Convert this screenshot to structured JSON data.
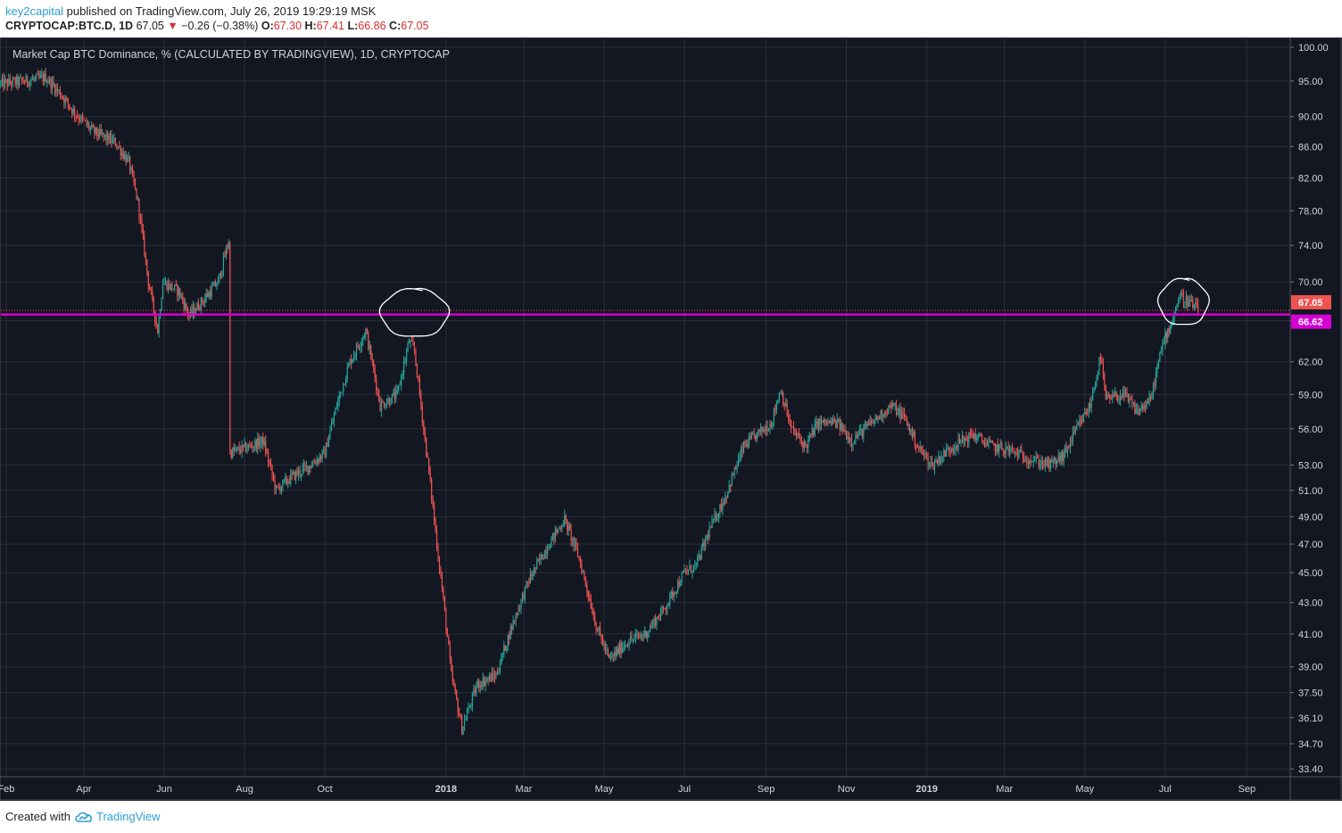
{
  "header": {
    "username": "key2capital",
    "published_text": "published on TradingView.com, July 26, 2019 19:29:19 MSK"
  },
  "symbol_bar": {
    "symbol": "CRYPTOCAP:BTC.D, 1D",
    "last": "67.05",
    "change": "−0.26 (−0.38%)",
    "open_label": "O:",
    "open": "67.30",
    "high_label": "H:",
    "high": "67.41",
    "low_label": "L:",
    "low": "66.86",
    "close_label": "C:",
    "close": "67.05",
    "down_color": "#d32f2f"
  },
  "footer": {
    "created_with": "Created with",
    "brand": "TradingView",
    "brand_icon": "tradingview-cloud-icon"
  },
  "chart_data": {
    "type": "candlestick",
    "title": "Market Cap BTC Dominance, % (CALCULATED BY TRADINGVIEW), 1D, CRYPTOCAP",
    "y_scale": "log",
    "ylim": [
      33.0,
      101.5
    ],
    "y_ticks": [
      "100.00",
      "95.00",
      "90.00",
      "86.00",
      "82.00",
      "78.00",
      "74.00",
      "70.00",
      "66.00",
      "62.00",
      "59.00",
      "56.00",
      "53.00",
      "51.00",
      "49.00",
      "47.00",
      "45.00",
      "43.00",
      "41.00",
      "39.00",
      "37.50",
      "36.10",
      "34.70",
      "33.40"
    ],
    "x_range": [
      "2017-01-28",
      "2019-10-04"
    ],
    "x_ticks": [
      {
        "date": "2017-02-01",
        "label": "Feb",
        "bold": false
      },
      {
        "date": "2017-04-01",
        "label": "Apr",
        "bold": false
      },
      {
        "date": "2017-06-01",
        "label": "Jun",
        "bold": false
      },
      {
        "date": "2017-08-01",
        "label": "Aug",
        "bold": false
      },
      {
        "date": "2017-10-01",
        "label": "Oct",
        "bold": false
      },
      {
        "date": "2018-01-01",
        "label": "2018",
        "bold": true
      },
      {
        "date": "2018-03-01",
        "label": "Mar",
        "bold": false
      },
      {
        "date": "2018-05-01",
        "label": "May",
        "bold": false
      },
      {
        "date": "2018-07-01",
        "label": "Jul",
        "bold": false
      },
      {
        "date": "2018-09-01",
        "label": "Sep",
        "bold": false
      },
      {
        "date": "2018-11-01",
        "label": "Nov",
        "bold": false
      },
      {
        "date": "2019-01-01",
        "label": "2019",
        "bold": true
      },
      {
        "date": "2019-03-01",
        "label": "Mar",
        "bold": false
      },
      {
        "date": "2019-05-01",
        "label": "May",
        "bold": false
      },
      {
        "date": "2019-07-01",
        "label": "Jul",
        "bold": false
      },
      {
        "date": "2019-09-01",
        "label": "Sep",
        "bold": false
      }
    ],
    "price_path": [
      {
        "date": "2017-01-28",
        "value": 94.6
      },
      {
        "date": "2017-02-15",
        "value": 95.0
      },
      {
        "date": "2017-03-03",
        "value": 95.5
      },
      {
        "date": "2017-03-15",
        "value": 93.0
      },
      {
        "date": "2017-03-25",
        "value": 90.5
      },
      {
        "date": "2017-04-08",
        "value": 88.0
      },
      {
        "date": "2017-04-25",
        "value": 86.5
      },
      {
        "date": "2017-05-05",
        "value": 84.0
      },
      {
        "date": "2017-05-12",
        "value": 79.0
      },
      {
        "date": "2017-05-20",
        "value": 70.0
      },
      {
        "date": "2017-05-27",
        "value": 65.0
      },
      {
        "date": "2017-05-31",
        "value": 70.0
      },
      {
        "date": "2017-06-12",
        "value": 69.0
      },
      {
        "date": "2017-06-20",
        "value": 66.5
      },
      {
        "date": "2017-06-30",
        "value": 68.0
      },
      {
        "date": "2017-07-12",
        "value": 70.0
      },
      {
        "date": "2017-07-20",
        "value": 74.5
      },
      {
        "date": "2017-07-21",
        "value": 54.0
      },
      {
        "date": "2017-08-05",
        "value": 54.5
      },
      {
        "date": "2017-08-15",
        "value": 55.0
      },
      {
        "date": "2017-08-25",
        "value": 51.0
      },
      {
        "date": "2017-09-05",
        "value": 52.0
      },
      {
        "date": "2017-09-20",
        "value": 53.0
      },
      {
        "date": "2017-10-01",
        "value": 54.0
      },
      {
        "date": "2017-10-10",
        "value": 58.0
      },
      {
        "date": "2017-10-20",
        "value": 62.0
      },
      {
        "date": "2017-11-01",
        "value": 65.0
      },
      {
        "date": "2017-11-12",
        "value": 58.0
      },
      {
        "date": "2017-11-25",
        "value": 59.0
      },
      {
        "date": "2017-12-04",
        "value": 64.0
      },
      {
        "date": "2017-12-08",
        "value": 63.0
      },
      {
        "date": "2017-12-15",
        "value": 56.0
      },
      {
        "date": "2017-12-25",
        "value": 47.0
      },
      {
        "date": "2018-01-05",
        "value": 38.5
      },
      {
        "date": "2018-01-13",
        "value": 35.5
      },
      {
        "date": "2018-01-25",
        "value": 38.0
      },
      {
        "date": "2018-02-08",
        "value": 38.5
      },
      {
        "date": "2018-02-20",
        "value": 41.5
      },
      {
        "date": "2018-03-05",
        "value": 44.5
      },
      {
        "date": "2018-03-20",
        "value": 47.0
      },
      {
        "date": "2018-04-01",
        "value": 48.8
      },
      {
        "date": "2018-04-12",
        "value": 46.0
      },
      {
        "date": "2018-04-25",
        "value": 41.5
      },
      {
        "date": "2018-05-05",
        "value": 39.4
      },
      {
        "date": "2018-05-18",
        "value": 40.5
      },
      {
        "date": "2018-06-01",
        "value": 41.0
      },
      {
        "date": "2018-06-15",
        "value": 42.5
      },
      {
        "date": "2018-07-01",
        "value": 45.0
      },
      {
        "date": "2018-07-10",
        "value": 45.5
      },
      {
        "date": "2018-07-20",
        "value": 48.0
      },
      {
        "date": "2018-08-01",
        "value": 50.5
      },
      {
        "date": "2018-08-15",
        "value": 54.5
      },
      {
        "date": "2018-08-25",
        "value": 55.5
      },
      {
        "date": "2018-09-05",
        "value": 56.5
      },
      {
        "date": "2018-09-12",
        "value": 59.5
      },
      {
        "date": "2018-09-20",
        "value": 56.0
      },
      {
        "date": "2018-10-01",
        "value": 54.5
      },
      {
        "date": "2018-10-10",
        "value": 56.5
      },
      {
        "date": "2018-10-25",
        "value": 56.5
      },
      {
        "date": "2018-11-05",
        "value": 55.0
      },
      {
        "date": "2018-11-20",
        "value": 56.5
      },
      {
        "date": "2018-12-05",
        "value": 58.0
      },
      {
        "date": "2018-12-15",
        "value": 57.0
      },
      {
        "date": "2018-12-25",
        "value": 54.5
      },
      {
        "date": "2019-01-05",
        "value": 53.0
      },
      {
        "date": "2019-01-20",
        "value": 54.5
      },
      {
        "date": "2019-02-05",
        "value": 55.5
      },
      {
        "date": "2019-02-20",
        "value": 54.5
      },
      {
        "date": "2019-03-05",
        "value": 54.2
      },
      {
        "date": "2019-03-20",
        "value": 53.5
      },
      {
        "date": "2019-04-05",
        "value": 53.0
      },
      {
        "date": "2019-04-15",
        "value": 53.8
      },
      {
        "date": "2019-04-25",
        "value": 56.0
      },
      {
        "date": "2019-05-05",
        "value": 58.0
      },
      {
        "date": "2019-05-13",
        "value": 62.5
      },
      {
        "date": "2019-05-17",
        "value": 58.5
      },
      {
        "date": "2019-05-30",
        "value": 59.0
      },
      {
        "date": "2019-06-10",
        "value": 57.5
      },
      {
        "date": "2019-06-20",
        "value": 58.5
      },
      {
        "date": "2019-06-26",
        "value": 62.0
      },
      {
        "date": "2019-07-01",
        "value": 64.5
      },
      {
        "date": "2019-07-05",
        "value": 65.5
      },
      {
        "date": "2019-07-12",
        "value": 68.5
      },
      {
        "date": "2019-07-20",
        "value": 67.8
      },
      {
        "date": "2019-07-26",
        "value": 67.05
      }
    ],
    "horizontal_lines": [
      {
        "value": 66.62,
        "label": "66.62",
        "color": "#d600d6",
        "style": "solid"
      },
      {
        "value": 67.05,
        "label": "67.05",
        "color": "#ef5350",
        "style": "dotted"
      }
    ],
    "annotations": [
      {
        "type": "hand-drawn-circle",
        "date": "2017-12-06",
        "value": 66.6
      },
      {
        "type": "hand-drawn-circle",
        "date": "2019-07-15",
        "value": 67.9
      }
    ],
    "colors": {
      "background": "#131722",
      "grid": "#2a2e39",
      "up": "#26a69a",
      "down": "#ef5350",
      "axis_text": "#d1d4dc",
      "level_line": "#d600d6"
    },
    "grid": true
  }
}
